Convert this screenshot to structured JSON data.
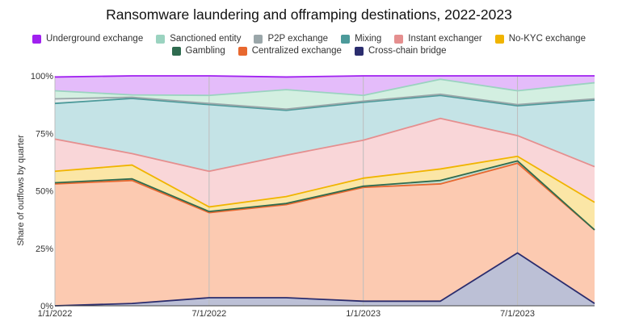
{
  "chart_data": {
    "type": "area",
    "stacked": true,
    "normalized": true,
    "title": "Ransomware laundering and offramping destinations, 2022-2023",
    "ylabel": "Share of outflows by quarter",
    "xlabel": "",
    "x": [
      "2022-01-01",
      "2022-04-01",
      "2022-07-01",
      "2022-10-01",
      "2023-01-01",
      "2023-04-01",
      "2023-07-01",
      "2023-10-01"
    ],
    "x_tick_labels": [
      "1/1/2022",
      "7/1/2022",
      "1/1/2023",
      "7/1/2023"
    ],
    "y_tick_labels": [
      "0%",
      "25%",
      "50%",
      "75%",
      "100%"
    ],
    "ylim": [
      0,
      100
    ],
    "grid": "vertical at x ticks",
    "legend_position": "top",
    "series": [
      {
        "name": "Cross-chain bridge",
        "color": "#2b2d6e",
        "fill": "#bcc0d6",
        "values": [
          0,
          1,
          3.5,
          3.5,
          2,
          2,
          23,
          1
        ]
      },
      {
        "name": "Centralized exchange",
        "color": "#e8682f",
        "fill": "#fccab1",
        "values": [
          53,
          53.5,
          37,
          40.5,
          49.5,
          51,
          39,
          32
        ]
      },
      {
        "name": "Gambling",
        "color": "#2f6b4f",
        "fill": "#c6dccd",
        "values": [
          0.5,
          0.7,
          0.5,
          0.5,
          0.5,
          1.5,
          1,
          0
        ]
      },
      {
        "name": "No-KYC exchange",
        "color": "#f0b400",
        "fill": "#fbe6a6",
        "values": [
          5,
          6,
          2,
          3,
          3.5,
          5,
          2,
          12
        ]
      },
      {
        "name": "Instant exchanger",
        "color": "#e58f8f",
        "fill": "#f9d6d8",
        "values": [
          14,
          5,
          15.5,
          18,
          16.5,
          22,
          9,
          15.5
        ]
      },
      {
        "name": "Mixing",
        "color": "#4c9a9a",
        "fill": "#c4e3e6",
        "values": [
          15.5,
          24,
          29,
          19.5,
          16.5,
          10,
          13,
          29
        ]
      },
      {
        "name": "P2P exchange",
        "color": "#9aa6a9",
        "fill": "#e3ecec",
        "values": [
          2,
          0.5,
          0.5,
          0.5,
          0.5,
          0.5,
          0.5,
          0.5
        ]
      },
      {
        "name": "Sanctioned entity",
        "color": "#9bd3c0",
        "fill": "#d3efe1",
        "values": [
          3.5,
          1,
          3.5,
          8.5,
          2.5,
          6.5,
          6,
          7
        ]
      },
      {
        "name": "Underground exchange",
        "color": "#a020f0",
        "fill": "#e4bcfa",
        "values": [
          6,
          8.3,
          8.5,
          5.5,
          8.5,
          1.5,
          6.5,
          3
        ]
      }
    ],
    "legend_order": [
      "Underground exchange",
      "Sanctioned entity",
      "P2P exchange",
      "Mixing",
      "Instant exchanger",
      "No-KYC exchange",
      "Gambling",
      "Centralized exchange",
      "Cross-chain bridge"
    ]
  }
}
